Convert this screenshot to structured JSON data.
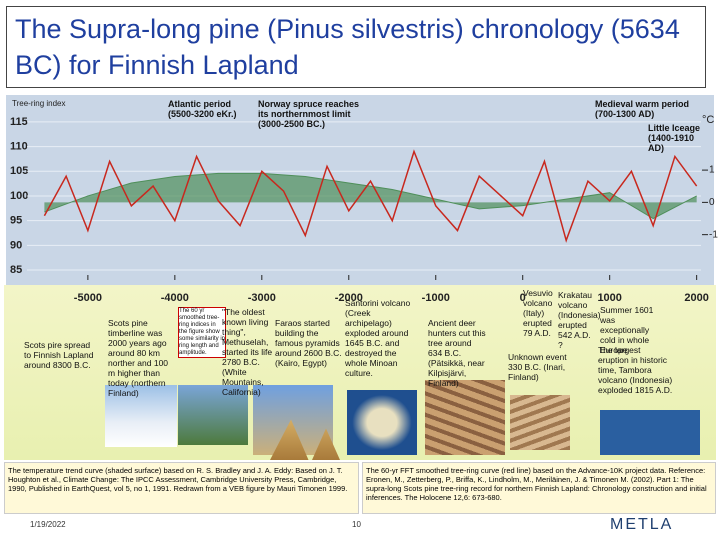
{
  "title": "The Supra-long pine (Pinus silvestris) chronology (5634 BC) for Finnish  Lapland",
  "chart_data": {
    "type": "line",
    "y_label": "Tree-ring index",
    "y2_label": "°C",
    "x": [
      -5500,
      -5250,
      -5000,
      -4750,
      -4500,
      -4250,
      -4000,
      -3750,
      -3500,
      -3250,
      -3000,
      -2750,
      -2500,
      -2250,
      -2000,
      -1750,
      -1500,
      -1250,
      -1000,
      -750,
      -500,
      -250,
      0,
      250,
      500,
      750,
      1000,
      1250,
      1500,
      1750,
      2000
    ],
    "series": [
      {
        "name": "60-yr FFT smoothed tree-ring curve",
        "color": "#c8281e",
        "values": [
          96,
          104,
          93,
          107,
          98,
          102,
          95,
          108,
          99,
          94,
          105,
          101,
          92,
          106,
          97,
          103,
          95,
          109,
          98,
          93,
          104,
          100,
          96,
          107,
          91,
          103,
          99,
          105,
          94,
          108,
          102
        ]
      },
      {
        "name": "Temperature trend",
        "color": "#4f8f5a",
        "axis": "y2",
        "x": [
          -5500,
          -5000,
          -4500,
          -4000,
          -3500,
          -3000,
          -2500,
          -2000,
          -1500,
          -1000,
          -500,
          0,
          500,
          1000,
          1500,
          2000
        ],
        "values": [
          -0.3,
          0.2,
          0.6,
          0.8,
          0.9,
          0.9,
          0.8,
          0.6,
          0.4,
          0.1,
          -0.2,
          -0.1,
          0.1,
          0.3,
          -0.5,
          0.2
        ]
      }
    ],
    "xlim": [
      -5700,
      2050
    ],
    "xticks": [
      -5000,
      -4000,
      -3000,
      -2000,
      -1000,
      0,
      1000,
      2000
    ],
    "ylim": [
      84,
      117
    ],
    "yticks": [
      85,
      90,
      95,
      100,
      105,
      110,
      115
    ],
    "y2lim": [
      -2.25,
      2.8
    ],
    "y2ticks": [
      -1,
      0,
      1
    ],
    "grid": true,
    "annotations": [
      "Atlantic period (5500-3200 eKr.)",
      "Norway spruce reaches its northernmost limit (3000-2500 BC.)",
      "Medieval warm period (700-1300 AD)",
      "Little Iceage (1400-1910 AD)"
    ]
  },
  "notes": [
    "Scots pire spread to Finnish Lapland around 8300 B.C.",
    "Scots pine timberline was 2000 years ago around 80 km norther and 100 m higher than today (northern Finland)",
    "The 60 yr smoothed tree-ring indices in the figure show some similarity in ring length and amplitude.",
    "\"The oldest known living thing\", Methuselah, started its life 2780 B.C. (White Mountains, California)",
    "Faraos started building the famous pyramids around 2600 B.C. (Kairo, Egypt)",
    "Santorini volcano (Creek archipelago) exploded around 1645 B.C. and destroyed the whole Minoan culture.",
    "Ancient deer hunters cut this tree around 634 B.C. (Pätsikkä, near Kilpisjärvi, Finland)",
    "Vesuvio volcano (Italy) erupted 79 A.D.",
    "Krakatau volcano (Indonesia) erupted 542 A.D. ?",
    "Unknown event 330 B.C. (Inari, Finland)",
    "Summer 1601 was exceptionally cold in whole Europe",
    "The largest eruption in historic time, Tambora volcano (Indonesia) exploded 1815 A.D."
  ],
  "sources": [
    "The temperature trend curve (shaded surface) based on R. S. Bradley and J. A. Eddy: Based on J. T. Houghton et al., Climate Change: The IPCC Assessment, Cambridge University Press, Cambridge, 1990, Published in EarthQuest, vol 5, no 1, 1991. Redrawn from a VEB figure by Mauri Timonen 1999.",
    "The 60-yr FFT smoothed tree-ring curve (red line) based on the Advance-10K project data. Reference: Eronen, M., Zetterberg, P., Briffa, K., Lindholm, M., Meriläinen, J. & Timonen M. (2002). Part 1: The supra-long Scots pine tree-ring record for northern Finnish Lapland: Chronology construction and initial inferences. The Holocene 12,6: 673-680."
  ],
  "footer": {
    "date": "1/19/2022",
    "page": "10",
    "logo": "METLA"
  }
}
